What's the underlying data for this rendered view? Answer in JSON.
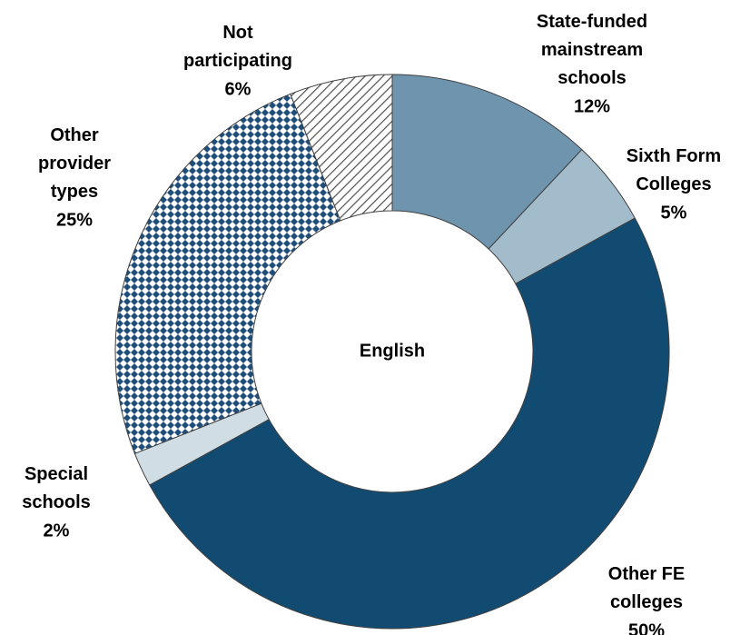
{
  "chart_data": {
    "type": "donut",
    "center_label": "English",
    "categories": [
      "State-funded mainstream schools",
      "Sixth Form Colleges",
      "Other FE colleges",
      "Special schools",
      "Other provider types",
      "Not participating"
    ],
    "values": [
      12,
      5,
      50,
      2,
      25,
      6
    ],
    "value_labels": [
      "12%",
      "5%",
      "50%",
      "2%",
      "25%",
      "6%"
    ],
    "colors": [
      "#6f94ae",
      "#a3bccb",
      "#124b72",
      "#d0dde5",
      "#1f4e79",
      "#555555"
    ],
    "patterns": [
      null,
      null,
      null,
      null,
      "diamond",
      "diagonal"
    ]
  }
}
